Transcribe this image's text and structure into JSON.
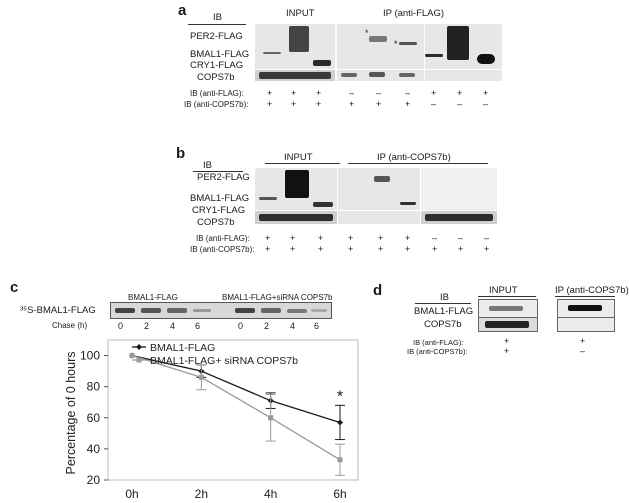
{
  "panels": {
    "a": {
      "letter": "a",
      "ib_header": "IB",
      "input_label": "INPUT",
      "ip_label": "IP (anti-FLAG)",
      "rows": [
        "PER2-FLAG",
        "BMAL1-FLAG",
        "CRY1-FLAG",
        "COPS7b"
      ],
      "ib_flag_label": "IB (anti-FLAG):",
      "ib_cops_label": "IB (anti-COPS7b):",
      "flag_signs": [
        "+",
        "+",
        "+",
        "–",
        "–",
        "–",
        "+",
        "+",
        "+"
      ],
      "cops_signs": [
        "+",
        "+",
        "+",
        "+",
        "+",
        "+",
        "–",
        "–",
        "–"
      ],
      "asterisk": "*"
    },
    "b": {
      "letter": "b",
      "ib_header": "IB",
      "input_label": "INPUT",
      "ip_label": "IP (anti-COPS7b)",
      "rows": [
        "PER2-FLAG",
        "BMAL1-FLAG",
        "CRY1-FLAG",
        "COPS7b"
      ],
      "ib_flag_label": "IB (anti-FLAG):",
      "ib_cops_label": "IB (anti-COPS7b):",
      "flag_signs": [
        "+",
        "+",
        "+",
        "+",
        "+",
        "+",
        "–",
        "–",
        "–"
      ],
      "cops_signs": [
        "+",
        "+",
        "+",
        "+",
        "+",
        "+",
        "+",
        "+",
        "+"
      ]
    },
    "c": {
      "letter": "c",
      "blot_label": "³⁵S-BMAL1-FLAG",
      "group1": "BMAL1-FLAG",
      "group2": "BMAL1-FLAG+siRNA COPS7b",
      "chase_label": "Chase (h)",
      "chase_values": [
        "0",
        "2",
        "4",
        "6",
        "0",
        "2",
        "4",
        "6"
      ]
    },
    "d": {
      "letter": "d",
      "ib_header": "IB",
      "input_label": "INPUT",
      "ip_label": "IP (anti-COPS7b)",
      "rows": [
        "BMAL1-FLAG",
        "COPS7b"
      ],
      "ib_flag_label": "IB (anti-FLAG):",
      "ib_cops_label": "IB (anti-COPS7b):",
      "flag_signs": [
        "+",
        "+"
      ],
      "cops_signs": [
        "+",
        "–"
      ]
    }
  },
  "chart_data": {
    "type": "line",
    "categories": [
      "0h",
      "2h",
      "4h",
      "6h"
    ],
    "ylabel": "Percentage of 0 hours",
    "ylim": [
      20,
      110
    ],
    "yticks": [
      20,
      40,
      60,
      80,
      100
    ],
    "legend_position": "top",
    "grid": false,
    "series": [
      {
        "name": "BMAL1-FLAG",
        "values": [
          100,
          90,
          71,
          57
        ],
        "errors": [
          0,
          4,
          5,
          11
        ],
        "color": "#1a1a1a",
        "marker": "diamond"
      },
      {
        "name": "BMAL1-FLAG+ siRNA COPS7b",
        "values": [
          100,
          86,
          60,
          33
        ],
        "errors": [
          0,
          8,
          15,
          10
        ],
        "color": "#9a9a9a",
        "marker": "square"
      }
    ],
    "annotation": {
      "text": "*",
      "category": "6h"
    }
  }
}
